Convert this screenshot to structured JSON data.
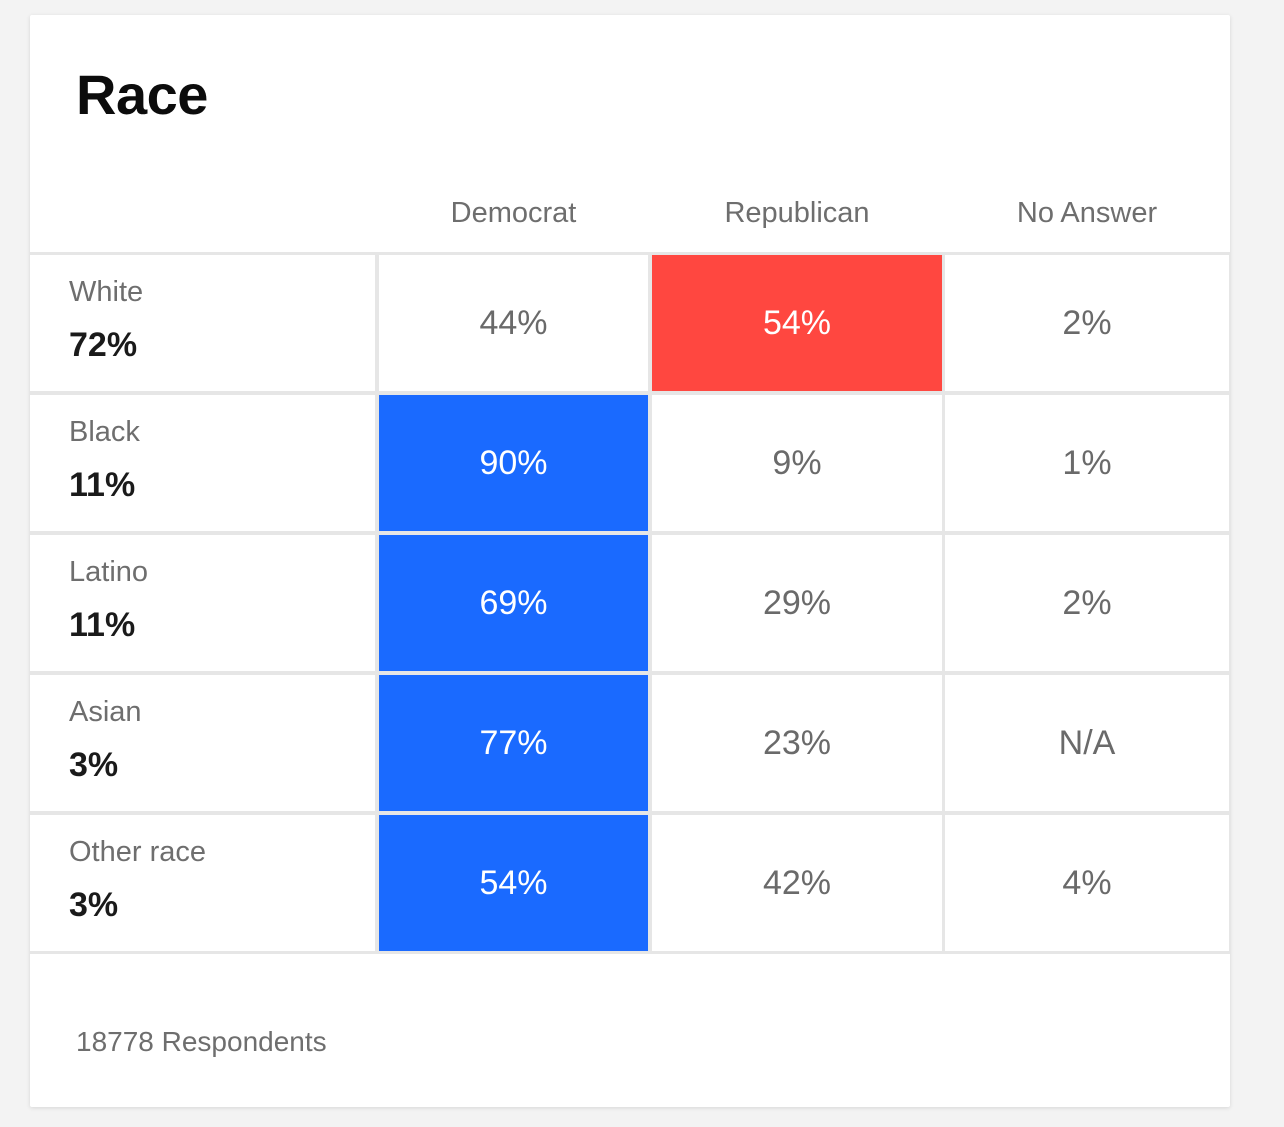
{
  "chart_data": {
    "type": "table",
    "title": "Race",
    "columns": [
      "Democrat",
      "Republican",
      "No Answer"
    ],
    "rows": [
      {
        "label": "White",
        "share": "72%",
        "values": [
          "44%",
          "54%",
          "2%"
        ],
        "winner": 1
      },
      {
        "label": "Black",
        "share": "11%",
        "values": [
          "90%",
          "9%",
          "1%"
        ],
        "winner": 0
      },
      {
        "label": "Latino",
        "share": "11%",
        "values": [
          "69%",
          "29%",
          "2%"
        ],
        "winner": 0
      },
      {
        "label": "Asian",
        "share": "3%",
        "values": [
          "77%",
          "23%",
          "N/A"
        ],
        "winner": 0
      },
      {
        "label": "Other race",
        "share": "3%",
        "values": [
          "54%",
          "42%",
          "4%"
        ],
        "winner": 0
      }
    ],
    "footer": "18778 Respondents",
    "colors": {
      "democrat": "#1a6aff",
      "republican": "#ff4740"
    }
  }
}
